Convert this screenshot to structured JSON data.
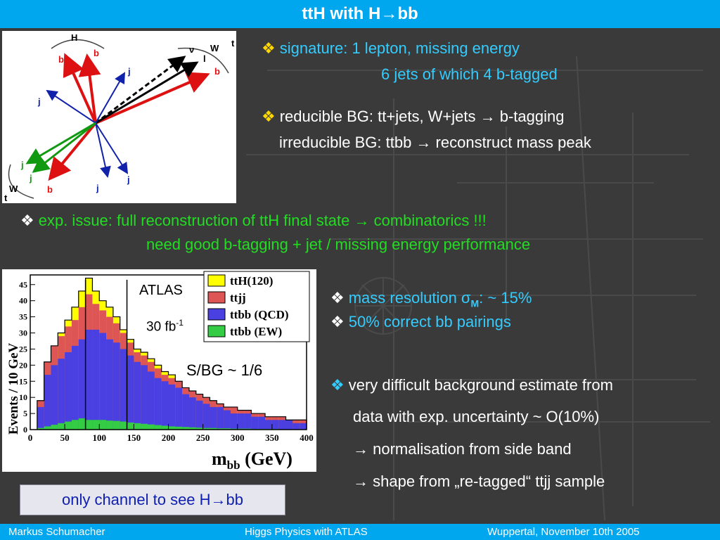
{
  "slide": {
    "title": "ttH with H→bb"
  },
  "diagram": {
    "labels": {
      "H": "H",
      "t_top": "t",
      "t_bottom": "t",
      "W_top": "W",
      "W_bottom": "W",
      "nu": "ν",
      "l": "l",
      "b": "b",
      "j": "j"
    }
  },
  "bullets": {
    "sig_line1": "signature: 1 lepton, missing energy",
    "sig_line2": "6 jets of which 4 b-tagged",
    "bg_line1": "reducible BG:    tt+jets, W+jets → b-tagging",
    "bg_line2": "irreducible BG:  ttbb  → reconstruct mass peak",
    "exp_line1": "exp. issue: full reconstruction of ttH final state → combinatorics !!!",
    "exp_line2": "need good b-tagging + jet / missing energy performance",
    "mass_res": "mass resolution σ",
    "mass_res_sub": "M",
    "mass_res_tail": ": ~ 15%",
    "pairings": "50% correct bb pairings",
    "bgest_line1": "very difficult background estimate from",
    "bgest_line2": "data with exp. uncertainty ~ O(10%)",
    "bgest_line3": "→ normalisation from side band",
    "bgest_line4": "→ shape from „re-tagged“  ttjj sample"
  },
  "plot_text": {
    "atlas": "ATLAS",
    "lumi": "30 fb",
    "lumi_sup": "-1",
    "sbg": "S/BG ~ 1/6",
    "y_axis_label": "Events / 10 GeV",
    "x_axis_label": "m",
    "x_axis_sub": "bb",
    "x_axis_unit": " (GeV)"
  },
  "chart_data": {
    "type": "bar",
    "stacked": true,
    "title": "",
    "xlabel": "m_bb (GeV)",
    "ylabel": "Events / 10 GeV",
    "xlim": [
      0,
      400
    ],
    "ylim": [
      0,
      48
    ],
    "x_ticks": [
      0,
      50,
      100,
      150,
      200,
      250,
      300,
      350,
      400
    ],
    "y_ticks": [
      0,
      5,
      10,
      15,
      20,
      25,
      30,
      35,
      40,
      45
    ],
    "bin_edges": [
      10,
      20,
      30,
      40,
      50,
      60,
      70,
      80,
      90,
      100,
      110,
      120,
      130,
      140,
      150,
      160,
      170,
      180,
      190,
      200,
      210,
      220,
      230,
      240,
      250,
      260,
      270,
      280,
      290,
      300,
      310,
      320,
      330,
      340,
      350,
      360,
      370,
      380,
      390,
      400
    ],
    "series": [
      {
        "name": "ttbb (EW)",
        "color": "#33cc44",
        "values": [
          0.5,
          1.0,
          1.5,
          2.0,
          2.5,
          3.0,
          3.5,
          3.0,
          3.0,
          3.0,
          2.8,
          2.7,
          2.5,
          2.2,
          2.0,
          1.8,
          1.6,
          1.4,
          1.2,
          1.0,
          0.9,
          0.8,
          0.7,
          0.6,
          0.5,
          0.5,
          0.4,
          0.4,
          0.3,
          0.3,
          0.3,
          0.2,
          0.2,
          0.2,
          0.2,
          0.1,
          0.1,
          0.1,
          0.1
        ]
      },
      {
        "name": "ttbb (QCD)",
        "color": "#4a3fe0",
        "cumulative": [
          7,
          17,
          20,
          22,
          24,
          26,
          28,
          31,
          31,
          30,
          28,
          27,
          25,
          23,
          21,
          20,
          18,
          16,
          15,
          14,
          13,
          11,
          10,
          9,
          8,
          7,
          7,
          6,
          5,
          5,
          5,
          4,
          4,
          3,
          3,
          3,
          3,
          2,
          2
        ]
      },
      {
        "name": "ttjj",
        "color": "#dd5555",
        "cumulative": [
          9,
          21,
          26,
          29,
          32,
          34,
          38,
          42,
          39,
          37,
          35,
          33,
          30,
          27,
          24,
          23,
          21,
          19,
          17,
          16,
          15,
          13,
          12,
          11,
          10,
          9,
          8,
          7,
          7,
          6,
          6,
          5,
          5,
          4,
          4,
          4,
          3,
          3,
          3
        ]
      },
      {
        "name": "ttH(120)",
        "color": "#ffff00",
        "cumulative": [
          9,
          21,
          26,
          30,
          34,
          38,
          43,
          47,
          43,
          40,
          38,
          35,
          31,
          28,
          25,
          24,
          22,
          20,
          18,
          17,
          15,
          13,
          12,
          11,
          10,
          9,
          8,
          7,
          7,
          6,
          6,
          5,
          5,
          4,
          4,
          4,
          3,
          3,
          3
        ]
      }
    ],
    "legend": [
      "ttH(120)",
      "ttjj",
      "ttbb (QCD)",
      "ttbb (EW)"
    ],
    "mass_window_lines": [
      80,
      140
    ],
    "legend_position": "top-right"
  }
}
